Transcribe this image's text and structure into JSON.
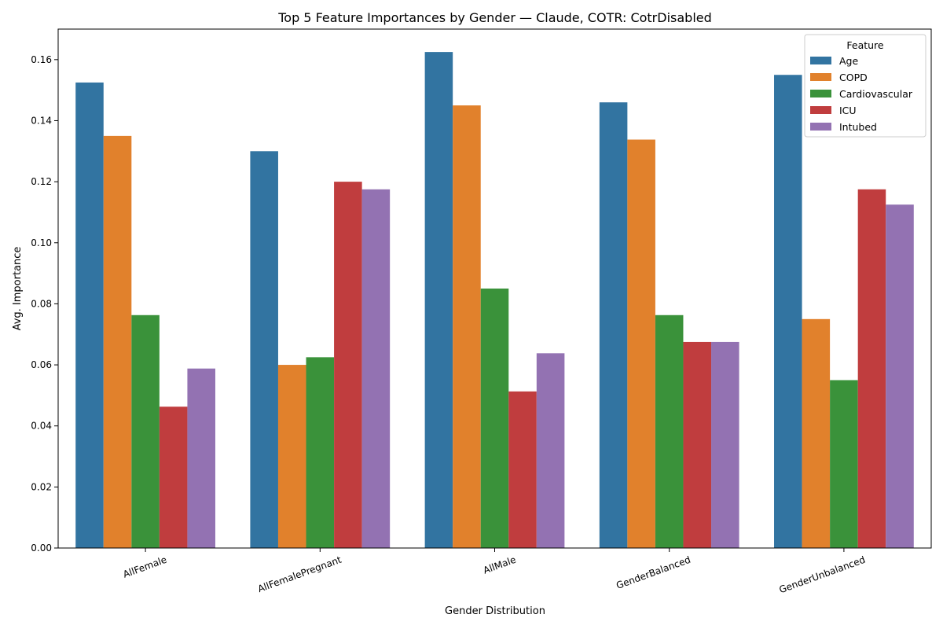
{
  "chart_data": {
    "type": "bar",
    "title": "Top 5 Feature Importances by Gender — Claude, COTR: CotrDisabled",
    "xlabel": "Gender Distribution",
    "ylabel": "Avg. Importance",
    "ylim": [
      0,
      0.17
    ],
    "yticks": [
      "0.00",
      "0.02",
      "0.04",
      "0.06",
      "0.08",
      "0.10",
      "0.12",
      "0.14",
      "0.16"
    ],
    "categories": [
      "AllFemale",
      "AllFemalePregnant",
      "AllMale",
      "GenderBalanced",
      "GenderUnbalanced"
    ],
    "legend": {
      "title": "Feature",
      "position": "top-right"
    },
    "series": [
      {
        "name": "Age",
        "color": "#3274a1",
        "values": [
          0.1525,
          0.13,
          0.1625,
          0.146,
          0.155
        ]
      },
      {
        "name": "COPD",
        "color": "#e1812c",
        "values": [
          0.135,
          0.06,
          0.145,
          0.1338,
          0.075
        ]
      },
      {
        "name": "Cardiovascular",
        "color": "#3a923a",
        "values": [
          0.0763,
          0.0625,
          0.085,
          0.0763,
          0.055
        ]
      },
      {
        "name": "ICU",
        "color": "#c03d3e",
        "values": [
          0.0463,
          0.12,
          0.0513,
          0.0675,
          0.1175
        ]
      },
      {
        "name": "Intubed",
        "color": "#9372b2",
        "values": [
          0.0588,
          0.1175,
          0.0638,
          0.0675,
          0.1125
        ]
      }
    ],
    "grid": false
  }
}
